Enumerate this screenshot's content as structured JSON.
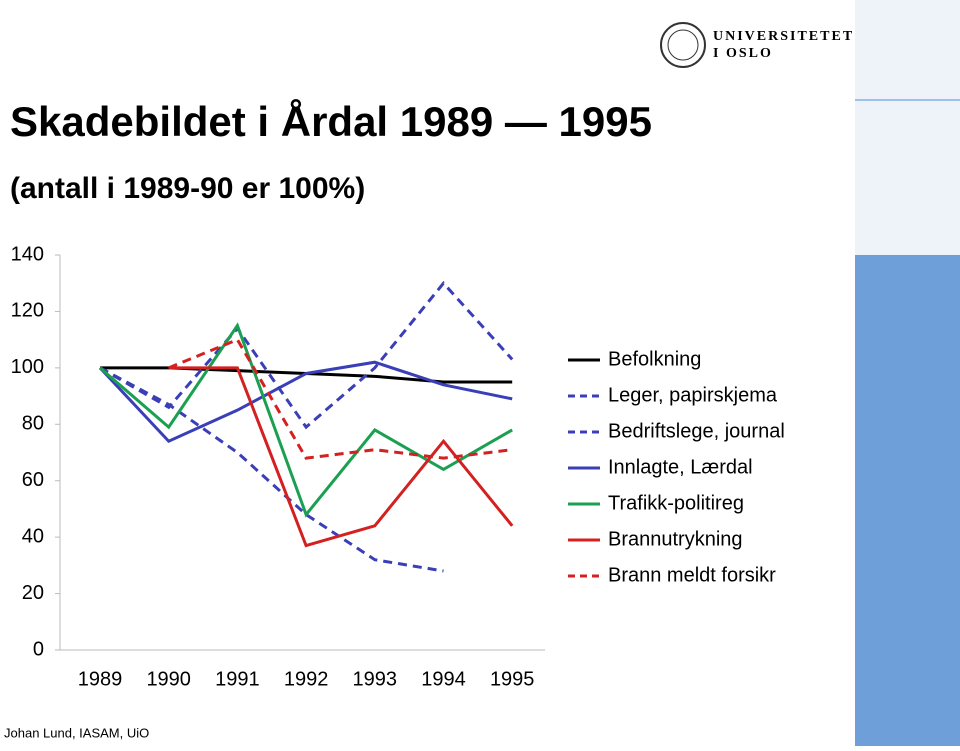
{
  "chart_data": {
    "type": "line",
    "title": "Skadebildet i Årdal 1989 — 1995",
    "subtitle": "(antall i 1989-90 er 100%)",
    "categories": [
      "1989",
      "1990",
      "1991",
      "1992",
      "1993",
      "1994",
      "1995"
    ],
    "ylim": [
      0,
      140
    ],
    "yticks": [
      0,
      20,
      40,
      60,
      80,
      100,
      120,
      140
    ],
    "grid": false,
    "legend": "right",
    "series": [
      {
        "name": "Befolkning",
        "color": "#000000",
        "dash": false,
        "values": [
          100,
          100,
          99,
          98,
          97,
          95,
          95
        ]
      },
      {
        "name": "Leger, papirskjema",
        "color": "#3a3fb8",
        "dash": true,
        "values": [
          100,
          87,
          70,
          48,
          32,
          28,
          null
        ]
      },
      {
        "name": "Bedriftslege, journal",
        "color": "#3a3fb8",
        "dash": true,
        "values": [
          100,
          86,
          114,
          79,
          100,
          130,
          103
        ]
      },
      {
        "name": "Innlagte, Lærdal",
        "color": "#3a3fb8",
        "dash": false,
        "values": [
          100,
          74,
          85,
          98,
          102,
          94,
          89
        ]
      },
      {
        "name": "Trafikk-politireg",
        "color": "#1aa050",
        "dash": false,
        "values": [
          100,
          79,
          115,
          48,
          78,
          64,
          78
        ]
      },
      {
        "name": "Brannutrykning",
        "color": "#d42020",
        "dash": false,
        "values": [
          null,
          100,
          100,
          37,
          44,
          74,
          44
        ]
      },
      {
        "name": "Brann meldt forsikr",
        "color": "#d42020",
        "dash": true,
        "values": [
          null,
          100,
          110,
          68,
          71,
          68,
          71
        ]
      }
    ]
  },
  "logo": {
    "line1": "UNIVERSITETET",
    "line2": "I OSLO"
  },
  "footer": "Johan Lund, IASAM, UiO"
}
